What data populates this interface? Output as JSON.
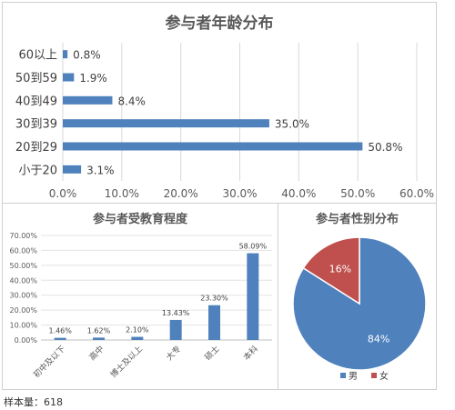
{
  "chart_data": [
    {
      "type": "bar",
      "orientation": "horizontal",
      "title": "参与者年龄分布",
      "categories": [
        "60以上",
        "50到59",
        "40到49",
        "30到39",
        "20到29",
        "小于20"
      ],
      "values": [
        0.8,
        1.9,
        8.4,
        35.0,
        50.8,
        3.1
      ],
      "value_labels": [
        "0.8%",
        "1.9%",
        "8.4%",
        "35.0%",
        "50.8%",
        "3.1%"
      ],
      "xlim": [
        0,
        60
      ],
      "x_ticks": [
        "0.0%",
        "10.0%",
        "20.0%",
        "30.0%",
        "40.0%",
        "50.0%",
        "60.0%"
      ],
      "grid": true,
      "color": "#4F81BD"
    },
    {
      "type": "bar",
      "title": "参与者受教育程度",
      "categories": [
        "初中及以下",
        "高中",
        "博士及以上",
        "大专",
        "硕士",
        "本科"
      ],
      "values": [
        1.46,
        1.62,
        2.1,
        13.43,
        23.3,
        58.09
      ],
      "value_labels": [
        "1.46%",
        "1.62%",
        "2.10%",
        "13.43%",
        "23.30%",
        "58.09%"
      ],
      "ylim": [
        0,
        70
      ],
      "y_ticks": [
        "0.00%",
        "10.00%",
        "20.00%",
        "30.00%",
        "40.00%",
        "50.00%",
        "60.00%",
        "70.00%"
      ],
      "grid": true,
      "color": "#4F81BD"
    },
    {
      "type": "pie",
      "title": "参与者性别分布",
      "categories": [
        "男",
        "女"
      ],
      "values": [
        84,
        16
      ],
      "value_labels": [
        "84%",
        "16%"
      ],
      "colors": [
        "#4F81BD",
        "#C0504D"
      ],
      "legend": "bottom"
    }
  ],
  "footer": {
    "sample_size": "样本量：618"
  }
}
